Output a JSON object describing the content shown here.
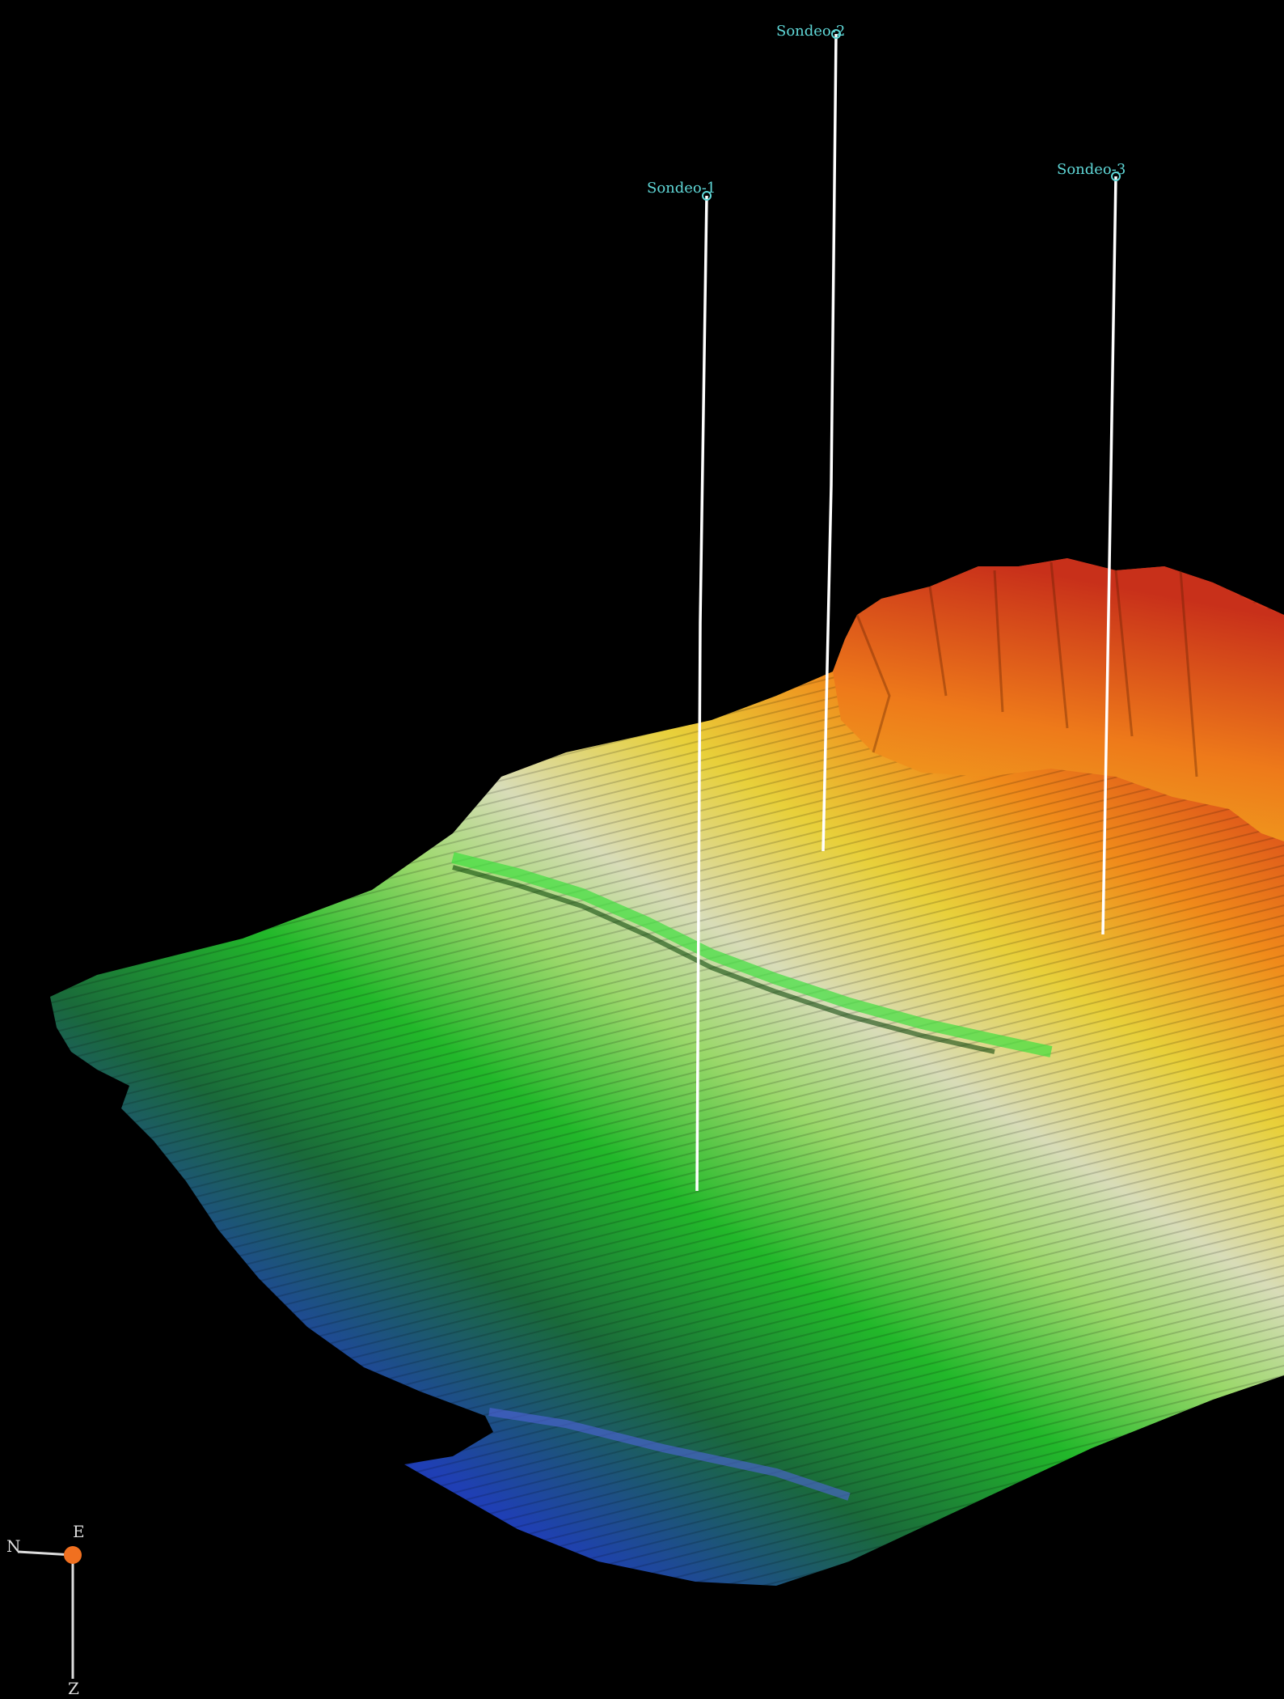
{
  "scene": {
    "background_color": "#000000",
    "surface_colors": [
      "#1a1fa8",
      "#1f3fb0",
      "#1e7a2a",
      "#22c222",
      "#d6dcb0",
      "#e8d43a",
      "#f08a1a",
      "#d83a1a"
    ]
  },
  "boreholes": [
    {
      "id": "sondeo-1",
      "label": "Sondeo-1"
    },
    {
      "id": "sondeo-2",
      "label": "Sondeo-2"
    },
    {
      "id": "sondeo-3",
      "label": "Sondeo-3"
    }
  ],
  "axis_triad": {
    "north_label": "N",
    "east_label": "E",
    "z_label": "Z",
    "line_color": "#dddddd",
    "origin_color": "#f07020"
  }
}
